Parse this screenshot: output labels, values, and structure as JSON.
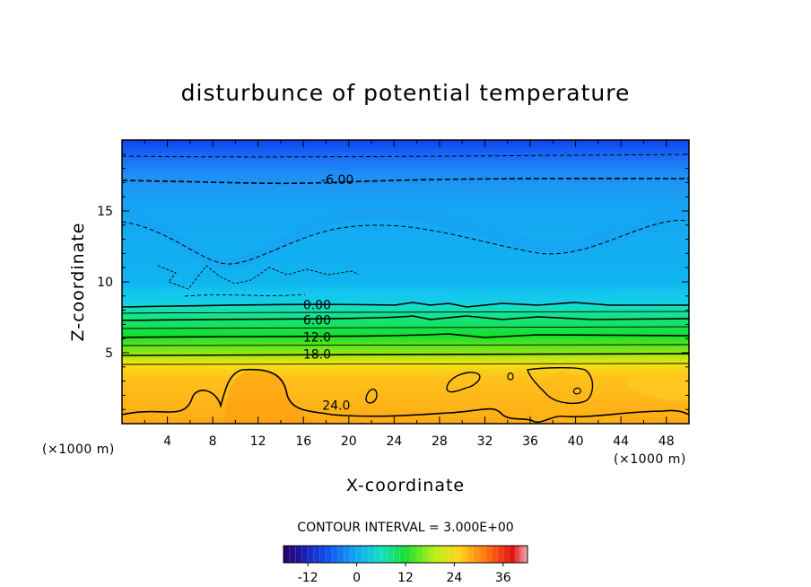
{
  "chart_data": {
    "type": "heatmap",
    "title": "disturbunce of potential temperature",
    "xlabel": "X-coordinate",
    "ylabel": "Z-coordinate",
    "x_unit_label": "(×1000 m)",
    "y_unit_label": "(×1000 m)",
    "xlim": [
      0,
      50
    ],
    "ylim": [
      0,
      20
    ],
    "x_ticks": [
      "4",
      "8",
      "12",
      "16",
      "20",
      "24",
      "28",
      "32",
      "36",
      "40",
      "44",
      "48"
    ],
    "y_ticks": [
      "5",
      "10",
      "15"
    ],
    "contour_interval_text": "CONTOUR INTERVAL = 3.000E+00",
    "contour_labels": [
      {
        "text": "-6.00",
        "x": 19,
        "z": 17.2
      },
      {
        "text": "0.00",
        "x": 17.2,
        "z": 8.4
      },
      {
        "text": "6.00",
        "x": 17.2,
        "z": 7.3
      },
      {
        "text": "12.0",
        "x": 17.2,
        "z": 6.1
      },
      {
        "text": "18.0",
        "x": 17.2,
        "z": 4.9
      },
      {
        "text": "24.0",
        "x": 18.9,
        "z": 1.3
      }
    ],
    "colorbar": {
      "min": -18,
      "max": 42,
      "ticks": [
        "-12",
        "0",
        "12",
        "24",
        "36"
      ]
    },
    "layers": [
      {
        "z_range": [
          19.2,
          20.0
        ],
        "value": -12
      },
      {
        "z_range": [
          18.0,
          19.2
        ],
        "value": -9
      },
      {
        "z_range": [
          14.0,
          18.0
        ],
        "value": -6
      },
      {
        "z_range": [
          9.0,
          14.0
        ],
        "value": -3
      },
      {
        "z_range": [
          8.4,
          9.0
        ],
        "value": 0
      },
      {
        "z_range": [
          7.3,
          8.4
        ],
        "value": 3
      },
      {
        "z_range": [
          6.1,
          7.3
        ],
        "value": 9
      },
      {
        "z_range": [
          4.9,
          6.1
        ],
        "value": 15
      },
      {
        "z_range": [
          4.2,
          4.9
        ],
        "value": 20
      },
      {
        "z_range": [
          0.0,
          4.2
        ],
        "value": 24
      }
    ],
    "colors": {
      "deep_blue": "#0a46f0",
      "sky": "#10b4f0",
      "green": "#16e02c",
      "orange": "#ffaa14"
    }
  }
}
